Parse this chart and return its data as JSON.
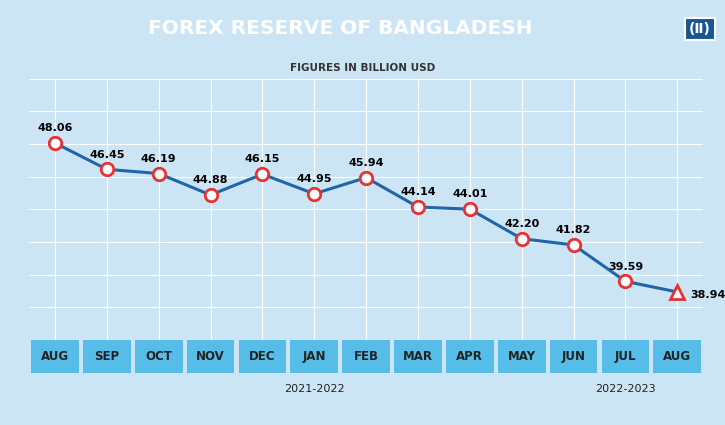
{
  "title": "FOREX RESERVE OF BANGLADESH",
  "subtitle": "FIGURES IN BILLION USD",
  "months": [
    "AUG",
    "SEP",
    "OCT",
    "NOV",
    "DEC",
    "JAN",
    "FEB",
    "MAR",
    "APR",
    "MAY",
    "JUN",
    "JUL",
    "AUG"
  ],
  "values": [
    48.06,
    46.45,
    46.19,
    44.88,
    46.15,
    44.95,
    45.94,
    44.14,
    44.01,
    42.2,
    41.82,
    39.59,
    38.94
  ],
  "xlabel_group1": "2021-2022",
  "xlabel_group2": "2022-2023",
  "bg_color": "#cce5f5",
  "title_bg": "#1b5694",
  "title_color": "#ffffff",
  "line_color": "#2065a8",
  "marker_color": "#e63232",
  "grid_color": "#ffffff",
  "axis_label_color": "#222222",
  "xaxis_bg_main": "#55bde8",
  "xaxis_bg_last2": "#55bde8",
  "ylim_min": 36,
  "ylim_max": 52
}
